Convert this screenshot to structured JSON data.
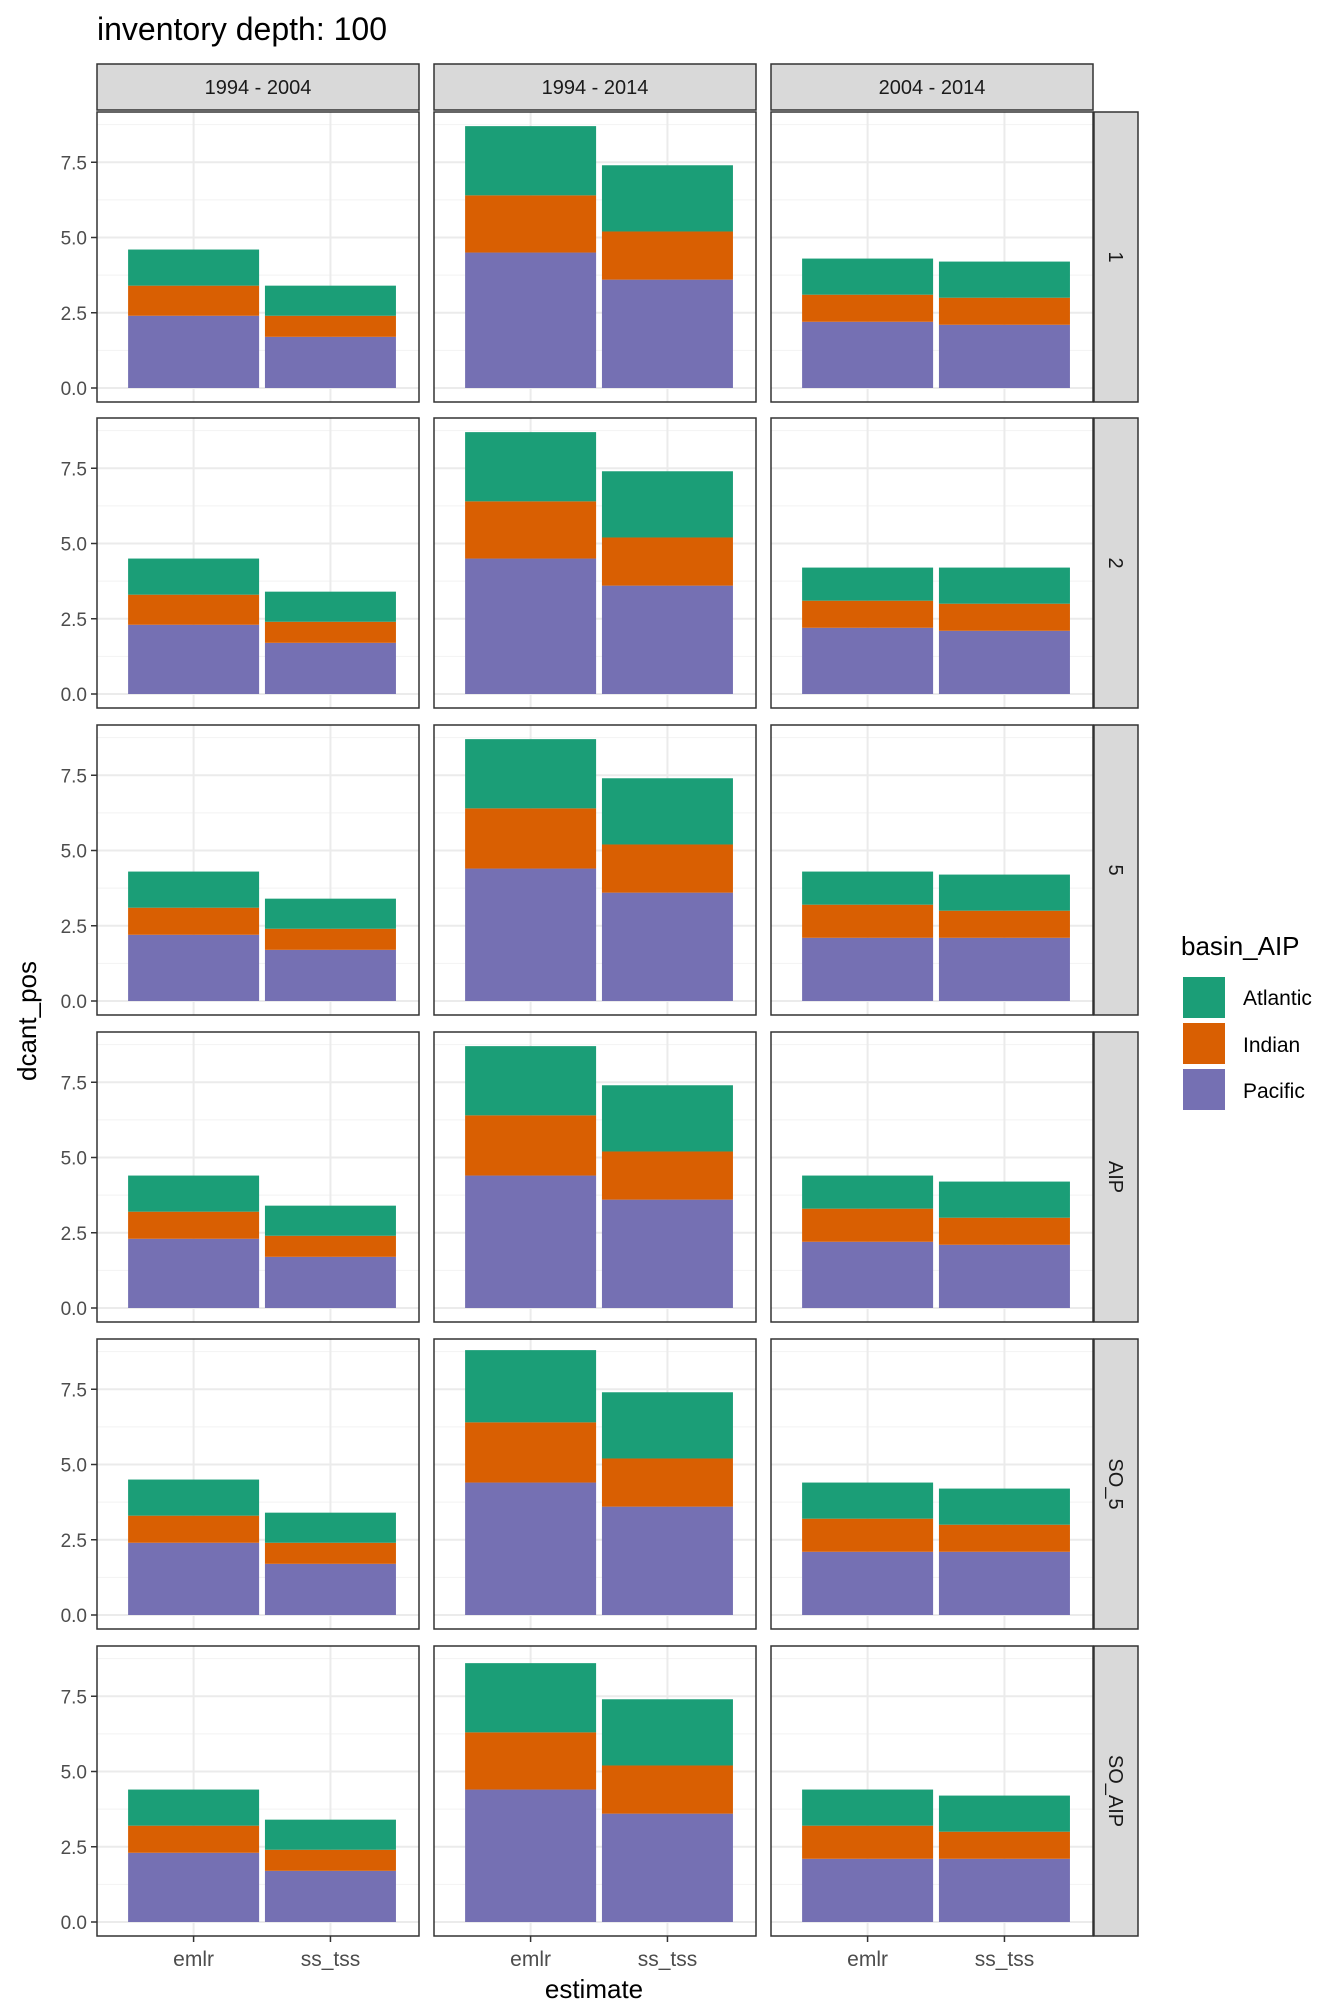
{
  "chart_data": {
    "type": "bar",
    "stacked": true,
    "title": "inventory depth: 100",
    "xlabel": "estimate",
    "ylabel": "dcant_pos",
    "ylim": [
      0,
      9
    ],
    "yticks": [
      "0.0",
      "2.5",
      "5.0",
      "7.5"
    ],
    "ytick_values": [
      0,
      2.5,
      5,
      7.5
    ],
    "categories": [
      "emlr",
      "ss_tss"
    ],
    "col_facets": [
      "1994 - 2004",
      "1994 - 2014",
      "2004 - 2014"
    ],
    "row_facets": [
      "1",
      "2",
      "5",
      "AIP",
      "SO_5",
      "SO_AIP"
    ],
    "legend": {
      "title": "basin_AIP",
      "position": "right",
      "items": [
        {
          "label": "Atlantic",
          "color": "#1B9E77"
        },
        {
          "label": "Indian",
          "color": "#D95F02"
        },
        {
          "label": "Pacific",
          "color": "#7570B3"
        }
      ]
    },
    "stack_order": [
      "Pacific",
      "Indian",
      "Atlantic"
    ],
    "colors": {
      "Atlantic": "#1B9E77",
      "Indian": "#D95F02",
      "Pacific": "#7570B3"
    },
    "panels": [
      {
        "row": "1",
        "col": "1994 - 2004",
        "bars": [
          {
            "x": "emlr",
            "Pacific": 2.4,
            "Indian": 1.0,
            "Atlantic": 1.2
          },
          {
            "x": "ss_tss",
            "Pacific": 1.7,
            "Indian": 0.7,
            "Atlantic": 1.0
          }
        ]
      },
      {
        "row": "1",
        "col": "1994 - 2014",
        "bars": [
          {
            "x": "emlr",
            "Pacific": 4.5,
            "Indian": 1.9,
            "Atlantic": 2.3
          },
          {
            "x": "ss_tss",
            "Pacific": 3.6,
            "Indian": 1.6,
            "Atlantic": 2.2
          }
        ]
      },
      {
        "row": "1",
        "col": "2004 - 2014",
        "bars": [
          {
            "x": "emlr",
            "Pacific": 2.2,
            "Indian": 0.9,
            "Atlantic": 1.2
          },
          {
            "x": "ss_tss",
            "Pacific": 2.1,
            "Indian": 0.9,
            "Atlantic": 1.2
          }
        ]
      },
      {
        "row": "2",
        "col": "1994 - 2004",
        "bars": [
          {
            "x": "emlr",
            "Pacific": 2.3,
            "Indian": 1.0,
            "Atlantic": 1.2
          },
          {
            "x": "ss_tss",
            "Pacific": 1.7,
            "Indian": 0.7,
            "Atlantic": 1.0
          }
        ]
      },
      {
        "row": "2",
        "col": "1994 - 2014",
        "bars": [
          {
            "x": "emlr",
            "Pacific": 4.5,
            "Indian": 1.9,
            "Atlantic": 2.3
          },
          {
            "x": "ss_tss",
            "Pacific": 3.6,
            "Indian": 1.6,
            "Atlantic": 2.2
          }
        ]
      },
      {
        "row": "2",
        "col": "2004 - 2014",
        "bars": [
          {
            "x": "emlr",
            "Pacific": 2.2,
            "Indian": 0.9,
            "Atlantic": 1.1
          },
          {
            "x": "ss_tss",
            "Pacific": 2.1,
            "Indian": 0.9,
            "Atlantic": 1.2
          }
        ]
      },
      {
        "row": "5",
        "col": "1994 - 2004",
        "bars": [
          {
            "x": "emlr",
            "Pacific": 2.2,
            "Indian": 0.9,
            "Atlantic": 1.2
          },
          {
            "x": "ss_tss",
            "Pacific": 1.7,
            "Indian": 0.7,
            "Atlantic": 1.0
          }
        ]
      },
      {
        "row": "5",
        "col": "1994 - 2014",
        "bars": [
          {
            "x": "emlr",
            "Pacific": 4.4,
            "Indian": 2.0,
            "Atlantic": 2.3
          },
          {
            "x": "ss_tss",
            "Pacific": 3.6,
            "Indian": 1.6,
            "Atlantic": 2.2
          }
        ]
      },
      {
        "row": "5",
        "col": "2004 - 2014",
        "bars": [
          {
            "x": "emlr",
            "Pacific": 2.1,
            "Indian": 1.1,
            "Atlantic": 1.1
          },
          {
            "x": "ss_tss",
            "Pacific": 2.1,
            "Indian": 0.9,
            "Atlantic": 1.2
          }
        ]
      },
      {
        "row": "AIP",
        "col": "1994 - 2004",
        "bars": [
          {
            "x": "emlr",
            "Pacific": 2.3,
            "Indian": 0.9,
            "Atlantic": 1.2
          },
          {
            "x": "ss_tss",
            "Pacific": 1.7,
            "Indian": 0.7,
            "Atlantic": 1.0
          }
        ]
      },
      {
        "row": "AIP",
        "col": "1994 - 2014",
        "bars": [
          {
            "x": "emlr",
            "Pacific": 4.4,
            "Indian": 2.0,
            "Atlantic": 2.3
          },
          {
            "x": "ss_tss",
            "Pacific": 3.6,
            "Indian": 1.6,
            "Atlantic": 2.2
          }
        ]
      },
      {
        "row": "AIP",
        "col": "2004 - 2014",
        "bars": [
          {
            "x": "emlr",
            "Pacific": 2.2,
            "Indian": 1.1,
            "Atlantic": 1.1
          },
          {
            "x": "ss_tss",
            "Pacific": 2.1,
            "Indian": 0.9,
            "Atlantic": 1.2
          }
        ]
      },
      {
        "row": "SO_5",
        "col": "1994 - 2004",
        "bars": [
          {
            "x": "emlr",
            "Pacific": 2.4,
            "Indian": 0.9,
            "Atlantic": 1.2
          },
          {
            "x": "ss_tss",
            "Pacific": 1.7,
            "Indian": 0.7,
            "Atlantic": 1.0
          }
        ]
      },
      {
        "row": "SO_5",
        "col": "1994 - 2014",
        "bars": [
          {
            "x": "emlr",
            "Pacific": 4.4,
            "Indian": 2.0,
            "Atlantic": 2.4
          },
          {
            "x": "ss_tss",
            "Pacific": 3.6,
            "Indian": 1.6,
            "Atlantic": 2.2
          }
        ]
      },
      {
        "row": "SO_5",
        "col": "2004 - 2014",
        "bars": [
          {
            "x": "emlr",
            "Pacific": 2.1,
            "Indian": 1.1,
            "Atlantic": 1.2
          },
          {
            "x": "ss_tss",
            "Pacific": 2.1,
            "Indian": 0.9,
            "Atlantic": 1.2
          }
        ]
      },
      {
        "row": "SO_AIP",
        "col": "1994 - 2004",
        "bars": [
          {
            "x": "emlr",
            "Pacific": 2.3,
            "Indian": 0.9,
            "Atlantic": 1.2
          },
          {
            "x": "ss_tss",
            "Pacific": 1.7,
            "Indian": 0.7,
            "Atlantic": 1.0
          }
        ]
      },
      {
        "row": "SO_AIP",
        "col": "1994 - 2014",
        "bars": [
          {
            "x": "emlr",
            "Pacific": 4.4,
            "Indian": 1.9,
            "Atlantic": 2.3
          },
          {
            "x": "ss_tss",
            "Pacific": 3.6,
            "Indian": 1.6,
            "Atlantic": 2.2
          }
        ]
      },
      {
        "row": "SO_AIP",
        "col": "2004 - 2014",
        "bars": [
          {
            "x": "emlr",
            "Pacific": 2.1,
            "Indian": 1.1,
            "Atlantic": 1.2
          },
          {
            "x": "ss_tss",
            "Pacific": 2.1,
            "Indian": 0.9,
            "Atlantic": 1.2
          }
        ]
      }
    ]
  }
}
